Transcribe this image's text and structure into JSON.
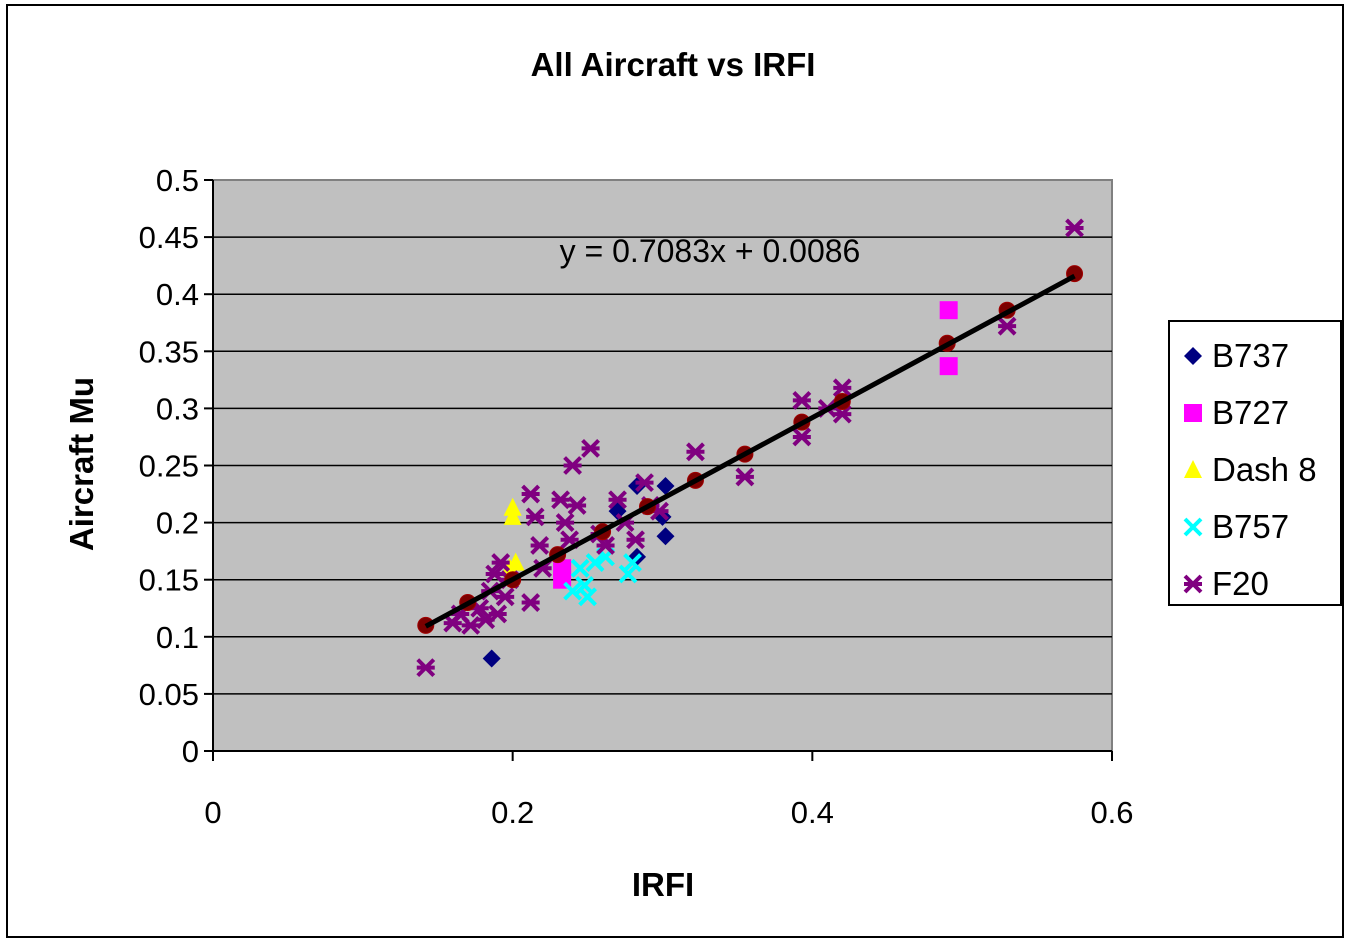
{
  "chart_data": {
    "type": "scatter",
    "title": "All Aircraft vs IRFI",
    "xlabel": "IRFI",
    "ylabel": "Aircraft Mu",
    "xlim": [
      0,
      0.6
    ],
    "ylim": [
      0,
      0.5
    ],
    "x_ticks": [
      "0",
      "0.2",
      "0.4",
      "0.6"
    ],
    "y_ticks": [
      "0",
      "0.05",
      "0.1",
      "0.15",
      "0.2",
      "0.25",
      "0.3",
      "0.35",
      "0.4",
      "0.45",
      "0.5"
    ],
    "grid": "horizontal",
    "plot_background": "#c0c0c0",
    "legend_position": "right",
    "series": [
      {
        "name": "B737",
        "marker": "diamond",
        "color": "#000080",
        "points": [
          [
            0.186,
            0.081
          ],
          [
            0.283,
            0.232
          ],
          [
            0.302,
            0.232
          ],
          [
            0.302,
            0.188
          ],
          [
            0.283,
            0.17
          ],
          [
            0.27,
            0.21
          ],
          [
            0.3,
            0.205
          ]
        ]
      },
      {
        "name": "B727",
        "marker": "square",
        "color": "#ff00ff",
        "points": [
          [
            0.491,
            0.386
          ],
          [
            0.491,
            0.337
          ],
          [
            0.233,
            0.15
          ],
          [
            0.233,
            0.16
          ]
        ]
      },
      {
        "name": "Dash 8",
        "marker": "triangle",
        "color": "#ffff00",
        "points": [
          [
            0.2,
            0.213
          ],
          [
            0.2,
            0.205
          ],
          [
            0.202,
            0.165
          ],
          [
            0.198,
            0.16
          ]
        ]
      },
      {
        "name": "B757",
        "marker": "x",
        "color": "#00ffff",
        "points": [
          [
            0.24,
            0.14
          ],
          [
            0.245,
            0.16
          ],
          [
            0.248,
            0.145
          ],
          [
            0.255,
            0.165
          ],
          [
            0.262,
            0.17
          ],
          [
            0.277,
            0.155
          ],
          [
            0.28,
            0.165
          ],
          [
            0.25,
            0.135
          ]
        ]
      },
      {
        "name": "F20",
        "marker": "star",
        "color": "#800080",
        "points": [
          [
            0.142,
            0.073
          ],
          [
            0.16,
            0.112
          ],
          [
            0.165,
            0.12
          ],
          [
            0.172,
            0.11
          ],
          [
            0.178,
            0.125
          ],
          [
            0.182,
            0.115
          ],
          [
            0.185,
            0.14
          ],
          [
            0.188,
            0.155
          ],
          [
            0.19,
            0.12
          ],
          [
            0.192,
            0.165
          ],
          [
            0.195,
            0.135
          ],
          [
            0.198,
            0.15
          ],
          [
            0.212,
            0.225
          ],
          [
            0.212,
            0.13
          ],
          [
            0.215,
            0.205
          ],
          [
            0.218,
            0.18
          ],
          [
            0.22,
            0.16
          ],
          [
            0.232,
            0.22
          ],
          [
            0.235,
            0.2
          ],
          [
            0.238,
            0.185
          ],
          [
            0.24,
            0.25
          ],
          [
            0.243,
            0.215
          ],
          [
            0.252,
            0.265
          ],
          [
            0.258,
            0.19
          ],
          [
            0.262,
            0.18
          ],
          [
            0.27,
            0.22
          ],
          [
            0.275,
            0.2
          ],
          [
            0.282,
            0.185
          ],
          [
            0.288,
            0.235
          ],
          [
            0.292,
            0.215
          ],
          [
            0.298,
            0.21
          ],
          [
            0.322,
            0.262
          ],
          [
            0.355,
            0.24
          ],
          [
            0.393,
            0.307
          ],
          [
            0.393,
            0.275
          ],
          [
            0.41,
            0.3
          ],
          [
            0.42,
            0.318
          ],
          [
            0.42,
            0.295
          ],
          [
            0.53,
            0.372
          ],
          [
            0.575,
            0.458
          ]
        ]
      }
    ],
    "fit_points": [
      [
        0.142,
        0.11
      ],
      [
        0.17,
        0.13
      ],
      [
        0.2,
        0.15
      ],
      [
        0.23,
        0.172
      ],
      [
        0.26,
        0.192
      ],
      [
        0.29,
        0.214
      ],
      [
        0.322,
        0.237
      ],
      [
        0.355,
        0.26
      ],
      [
        0.393,
        0.288
      ],
      [
        0.42,
        0.306
      ],
      [
        0.49,
        0.357
      ],
      [
        0.53,
        0.386
      ],
      [
        0.575,
        0.418
      ]
    ],
    "trendline": {
      "slope": 0.7083,
      "intercept": 0.0086,
      "x_range": [
        0.142,
        0.575
      ],
      "color": "#000000",
      "equation_label": "y = 0.7083x + 0.0086"
    }
  }
}
